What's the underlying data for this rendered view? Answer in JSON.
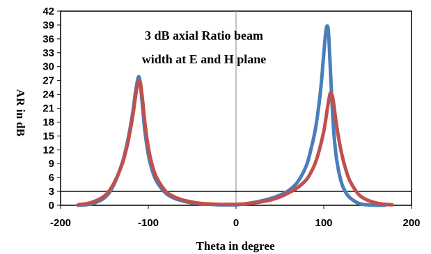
{
  "chart_data": {
    "type": "line",
    "title": "",
    "annotation": [
      "3 dB axial Ratio beam",
      "width at E and H plane"
    ],
    "xlabel": "Theta in degree",
    "ylabel": "AR in dB",
    "xlim": [
      -200,
      200
    ],
    "ylim": [
      0,
      42
    ],
    "xticks": [
      -200,
      -100,
      0,
      100,
      200
    ],
    "yticks": [
      0,
      3,
      6,
      9,
      12,
      15,
      18,
      21,
      24,
      27,
      30,
      33,
      36,
      39,
      42
    ],
    "grid": false,
    "reference_line": {
      "y": 3
    },
    "series": [
      {
        "color": "#4a7ebb",
        "x": [
          -180,
          -165,
          -150,
          -140,
          -130,
          -124,
          -120,
          -117,
          -115,
          -113,
          -112,
          -111,
          -110,
          -109,
          -108,
          -106,
          -104,
          -100,
          -95,
          -90,
          -80,
          -70,
          -60,
          -50,
          -40,
          -30,
          -20,
          -10,
          0,
          10,
          20,
          30,
          40,
          50,
          60,
          70,
          80,
          85,
          90,
          94,
          97,
          99,
          101,
          102,
          103,
          104,
          105,
          106,
          107,
          108,
          110,
          112,
          115,
          120,
          125,
          130,
          140,
          150,
          160,
          170
        ],
        "y": [
          0,
          0.3,
          1.6,
          4.2,
          9.0,
          13.5,
          17.5,
          21.0,
          24.0,
          26.3,
          27.3,
          27.8,
          27.4,
          26.2,
          24.3,
          20.2,
          16.2,
          11.0,
          7.2,
          5.0,
          2.6,
          1.5,
          0.9,
          0.5,
          0.3,
          0.2,
          0.1,
          0.1,
          0.1,
          0.3,
          0.6,
          1.0,
          1.5,
          2.2,
          3.2,
          5.0,
          8.5,
          11.8,
          16.0,
          21.0,
          26.0,
          30.5,
          35.0,
          37.0,
          38.4,
          38.8,
          38.2,
          35.5,
          31.5,
          27.5,
          20.0,
          14.5,
          9.5,
          5.0,
          2.8,
          1.6,
          0.4,
          0.1,
          0,
          0
        ]
      },
      {
        "color": "#c0504d",
        "x": [
          -180,
          -165,
          -150,
          -140,
          -130,
          -124,
          -120,
          -117,
          -115,
          -113,
          -111,
          -110,
          -109,
          -108,
          -106,
          -104,
          -100,
          -95,
          -90,
          -80,
          -70,
          -60,
          -50,
          -40,
          -30,
          -20,
          -10,
          0,
          10,
          20,
          30,
          40,
          50,
          60,
          70,
          80,
          85,
          90,
          95,
          100,
          103,
          105,
          107,
          108,
          110,
          112,
          115,
          120,
          125,
          130,
          140,
          150,
          160,
          170,
          178
        ],
        "y": [
          0.1,
          0.6,
          2.0,
          4.5,
          8.8,
          13.0,
          16.8,
          20.2,
          23.0,
          25.4,
          26.8,
          27.0,
          26.4,
          25.2,
          21.8,
          18.0,
          12.5,
          8.3,
          5.8,
          3.0,
          1.8,
          1.1,
          0.7,
          0.4,
          0.3,
          0.2,
          0.2,
          0.2,
          0.3,
          0.5,
          0.8,
          1.2,
          1.8,
          2.7,
          3.8,
          5.5,
          7.0,
          9.0,
          12.0,
          16.0,
          19.5,
          22.0,
          24.0,
          24.3,
          23.5,
          21.0,
          16.8,
          11.5,
          7.8,
          5.2,
          2.3,
          1.1,
          0.5,
          0.2,
          0.1
        ]
      }
    ]
  }
}
